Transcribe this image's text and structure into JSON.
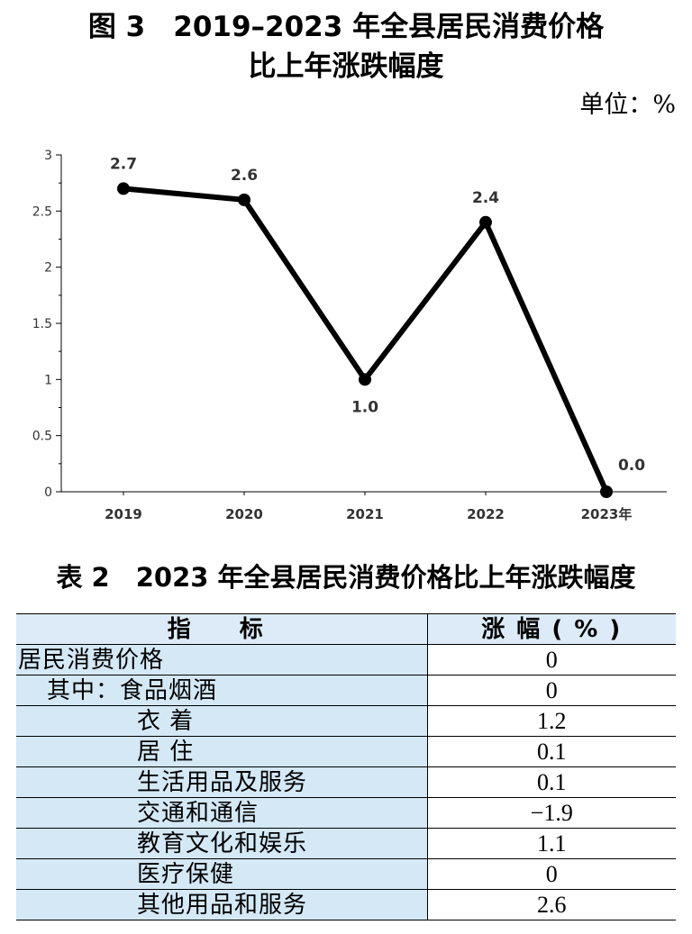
{
  "figure": {
    "title_line1": "图 3　2019–2023 年全县居民消费价格",
    "title_line2": "比上年涨跌幅度",
    "unit": "单位：%"
  },
  "chart_data": {
    "type": "line",
    "title": "图 3　2019–2023 年全县居民消费价格比上年涨跌幅度",
    "unit": "单位：%",
    "categories": [
      "2019",
      "2020",
      "2021",
      "2022",
      "2023年"
    ],
    "values": [
      2.7,
      2.6,
      1.0,
      2.4,
      0.0
    ],
    "data_labels": [
      "2.7",
      "2.6",
      "1.0",
      "2.4",
      "0.0"
    ],
    "yticks": [
      "0",
      "0.5",
      "1",
      "1.5",
      "2",
      "2.5",
      "3"
    ],
    "ylim": [
      0,
      3
    ],
    "grid": false,
    "line_color": "#000000"
  },
  "table": {
    "title": "表 2　2023 年全县居民消费价格比上年涨跌幅度",
    "headers": [
      "指　标",
      "涨 幅 ( % )"
    ],
    "rows": [
      {
        "name": "居民消费价格",
        "value": "0"
      },
      {
        "name": "其中：食品烟酒",
        "value": "0"
      },
      {
        "name": "衣 着",
        "value": "1.2"
      },
      {
        "name": "居 住",
        "value": "0.1"
      },
      {
        "name": "生活用品及服务",
        "value": "0.1"
      },
      {
        "name": "交通和通信",
        "value": "−1.9"
      },
      {
        "name": "教育文化和娱乐",
        "value": "1.1"
      },
      {
        "name": "医疗保健",
        "value": "0"
      },
      {
        "name": "其他用品和服务",
        "value": "2.6"
      }
    ]
  },
  "colors": {
    "table_header_bg": "#dcebf7",
    "table_name_bg": "#d4e8f6"
  }
}
